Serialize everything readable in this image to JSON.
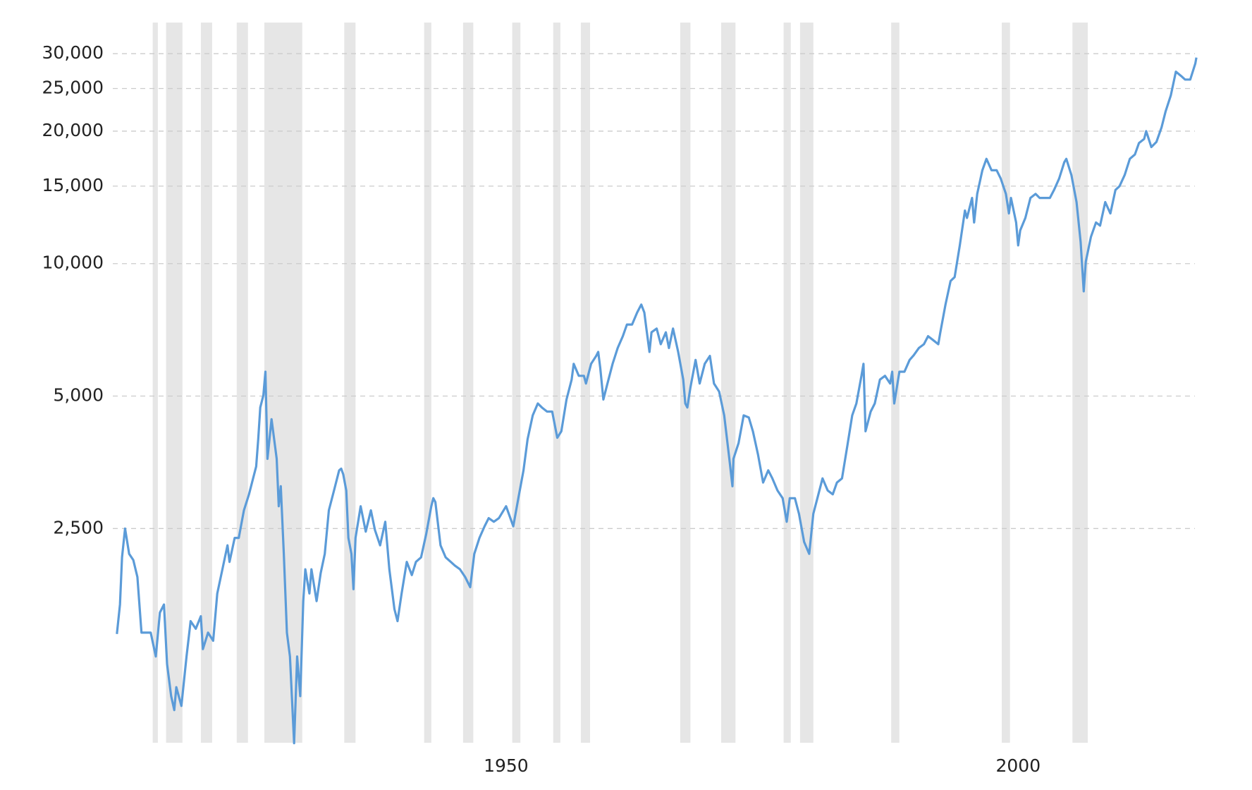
{
  "chart_data": {
    "type": "line",
    "yscale": "log",
    "ylim": [
      815,
      35300
    ],
    "yticks": [
      {
        "value": 2500,
        "label": "2,500"
      },
      {
        "value": 5000,
        "label": "5,000"
      },
      {
        "value": 10000,
        "label": "10,000"
      },
      {
        "value": 15000,
        "label": "15,000"
      },
      {
        "value": 20000,
        "label": "20,000"
      },
      {
        "value": 25000,
        "label": "25,000"
      },
      {
        "value": 30000,
        "label": "30,000"
      }
    ],
    "xlim": [
      1911.6,
      2017.6
    ],
    "xticks": [
      1950,
      2000
    ],
    "grid": true,
    "color": "#5b9bd8",
    "shade_color": "#e6e6e6",
    "shaded_ranges": [
      [
        1915.5,
        1916.0
      ],
      [
        1916.8,
        1918.4
      ],
      [
        1920.2,
        1921.3
      ],
      [
        1923.7,
        1924.8
      ],
      [
        1926.4,
        1930.1
      ],
      [
        1934.2,
        1935.3
      ],
      [
        1942.0,
        1942.7
      ],
      [
        1945.8,
        1946.8
      ],
      [
        1950.6,
        1951.4
      ],
      [
        1954.6,
        1955.3
      ],
      [
        1957.3,
        1958.2
      ],
      [
        1967.0,
        1968.0
      ],
      [
        1971.0,
        1972.4
      ],
      [
        1977.1,
        1977.8
      ],
      [
        1978.7,
        1980.0
      ],
      [
        1987.6,
        1988.4
      ],
      [
        1998.4,
        1999.2
      ],
      [
        2005.3,
        2006.8
      ]
    ],
    "x": [
      1912.0,
      1912.3,
      1912.5,
      1912.8,
      1913.2,
      1913.6,
      1914.0,
      1914.4,
      1914.8,
      1915.3,
      1915.8,
      1916.2,
      1916.6,
      1916.9,
      1917.3,
      1917.6,
      1917.8,
      1918.3,
      1918.8,
      1919.2,
      1919.7,
      1920.2,
      1920.4,
      1920.9,
      1921.4,
      1921.8,
      1922.3,
      1922.8,
      1923.0,
      1923.5,
      1923.9,
      1924.4,
      1924.9,
      1925.4,
      1925.6,
      1925.8,
      1926.0,
      1926.3,
      1926.5,
      1926.7,
      1927.1,
      1927.6,
      1927.8,
      1928.0,
      1928.3,
      1928.6,
      1928.9,
      1929.3,
      1929.6,
      1929.9,
      1930.2,
      1930.4,
      1930.8,
      1931.0,
      1931.5,
      1931.9,
      1932.3,
      1932.7,
      1933.2,
      1933.7,
      1933.9,
      1934.1,
      1934.4,
      1934.6,
      1934.9,
      1935.1,
      1935.3,
      1935.8,
      1936.3,
      1936.8,
      1937.2,
      1937.7,
      1938.2,
      1938.6,
      1939.1,
      1939.4,
      1939.8,
      1940.3,
      1940.8,
      1941.2,
      1941.7,
      1942.2,
      1942.7,
      1942.9,
      1943.1,
      1943.6,
      1944.1,
      1944.6,
      1945.0,
      1945.5,
      1946.0,
      1946.5,
      1946.9,
      1947.4,
      1947.9,
      1948.3,
      1948.8,
      1949.3,
      1950.0,
      1950.7,
      1951.2,
      1951.7,
      1952.1,
      1952.6,
      1953.1,
      1953.5,
      1954.0,
      1954.5,
      1955.0,
      1955.4,
      1955.9,
      1956.4,
      1956.6,
      1957.1,
      1957.6,
      1957.8,
      1958.3,
      1958.8,
      1959.0,
      1959.2,
      1959.5,
      1959.9,
      1960.4,
      1960.9,
      1961.4,
      1961.8,
      1962.3,
      1962.8,
      1963.2,
      1963.5,
      1963.7,
      1964.0,
      1964.2,
      1964.7,
      1965.1,
      1965.6,
      1965.9,
      1966.3,
      1966.8,
      1967.3,
      1967.5,
      1967.7,
      1968.0,
      1968.5,
      1968.9,
      1969.4,
      1969.9,
      1970.3,
      1970.8,
      1971.3,
      1971.8,
      1972.1,
      1972.2,
      1972.7,
      1973.2,
      1973.7,
      1974.1,
      1974.6,
      1975.1,
      1975.6,
      1976.0,
      1976.5,
      1977.0,
      1977.4,
      1977.7,
      1978.2,
      1978.6,
      1979.1,
      1979.6,
      1980.0,
      1980.4,
      1980.9,
      1981.4,
      1981.9,
      1982.3,
      1982.8,
      1983.3,
      1983.8,
      1984.2,
      1984.7,
      1984.9,
      1985.1,
      1985.6,
      1986.0,
      1986.5,
      1987.0,
      1987.5,
      1987.7,
      1987.9,
      1988.4,
      1988.9,
      1989.4,
      1989.8,
      1990.3,
      1990.8,
      1991.2,
      1991.7,
      1992.2,
      1992.4,
      1992.9,
      1993.4,
      1993.8,
      1994.3,
      1994.8,
      1995.0,
      1995.5,
      1995.7,
      1996.0,
      1996.5,
      1996.9,
      1997.4,
      1997.9,
      1998.3,
      1998.8,
      1999.1,
      1999.3,
      1999.8,
      2000.0,
      2000.2,
      2000.7,
      2001.2,
      2001.7,
      2002.1,
      2002.6,
      2003.1,
      2003.5,
      2004.0,
      2004.5,
      2004.7,
      2005.2,
      2005.7,
      2006.1,
      2006.4,
      2006.6,
      2007.1,
      2007.6,
      2008.0,
      2008.5,
      2009.0,
      2009.5,
      2009.9,
      2010.4,
      2010.9,
      2011.4,
      2011.8,
      2012.3,
      2012.5,
      2013.0,
      2013.5,
      2014.0,
      2014.4,
      2014.9,
      2015.4,
      2015.9,
      2016.3,
      2016.8,
      2017.3,
      2017.4
    ],
    "values": [
      1440,
      1680,
      2150,
      2500,
      2190,
      2120,
      1940,
      1450,
      1450,
      1450,
      1280,
      1610,
      1680,
      1230,
      1040,
      967,
      1090,
      988,
      1280,
      1540,
      1480,
      1580,
      1330,
      1450,
      1390,
      1780,
      2020,
      2290,
      2100,
      2380,
      2380,
      2750,
      2990,
      3320,
      3460,
      3990,
      4710,
      5020,
      5680,
      3600,
      4430,
      3600,
      2810,
      3120,
      2190,
      1450,
      1280,
      813,
      1280,
      1040,
      1710,
      2020,
      1780,
      2020,
      1710,
      1980,
      2190,
      2750,
      3050,
      3390,
      3420,
      3320,
      3050,
      2380,
      2190,
      1820,
      2380,
      2810,
      2460,
      2750,
      2480,
      2290,
      2590,
      2020,
      1640,
      1540,
      1780,
      2100,
      1960,
      2100,
      2150,
      2430,
      2810,
      2930,
      2870,
      2290,
      2150,
      2100,
      2060,
      2020,
      1940,
      1840,
      2190,
      2380,
      2530,
      2640,
      2590,
      2640,
      2810,
      2530,
      2930,
      3390,
      3990,
      4520,
      4810,
      4710,
      4610,
      4610,
      4020,
      4160,
      4910,
      5450,
      5920,
      5560,
      5560,
      5340,
      5920,
      6170,
      6300,
      5790,
      4910,
      5340,
      5920,
      6430,
      6840,
      7270,
      7270,
      7740,
      8070,
      7740,
      7120,
      6300,
      6980,
      7120,
      6560,
      6980,
      6430,
      7120,
      6300,
      5450,
      4810,
      4710,
      5230,
      6040,
      5340,
      5920,
      6170,
      5340,
      5120,
      4520,
      3600,
      3120,
      3600,
      3910,
      4520,
      4470,
      4160,
      3680,
      3180,
      3390,
      3250,
      3050,
      2930,
      2590,
      2930,
      2930,
      2700,
      2330,
      2190,
      2700,
      2930,
      3250,
      3050,
      2990,
      3180,
      3250,
      3830,
      4520,
      4810,
      5560,
      5920,
      4160,
      4610,
      4810,
      5450,
      5560,
      5340,
      5680,
      4810,
      5680,
      5680,
      6040,
      6190,
      6430,
      6560,
      6840,
      6700,
      6560,
      6980,
      8070,
      9130,
      9320,
      11000,
      13200,
      12700,
      14100,
      12400,
      14400,
      16300,
      17300,
      16300,
      16300,
      15600,
      14400,
      13000,
      14100,
      12400,
      11000,
      11900,
      12700,
      14100,
      14400,
      14100,
      14100,
      14100,
      14700,
      15600,
      17000,
      17300,
      15900,
      13800,
      11200,
      8650,
      10100,
      11500,
      12400,
      12200,
      13800,
      13000,
      14700,
      15000,
      15900,
      17300,
      17700,
      18800,
      19200,
      20000,
      18400,
      18900,
      20400,
      22200,
      24100,
      27300,
      26700,
      26200,
      26200,
      28500,
      29400
    ]
  }
}
